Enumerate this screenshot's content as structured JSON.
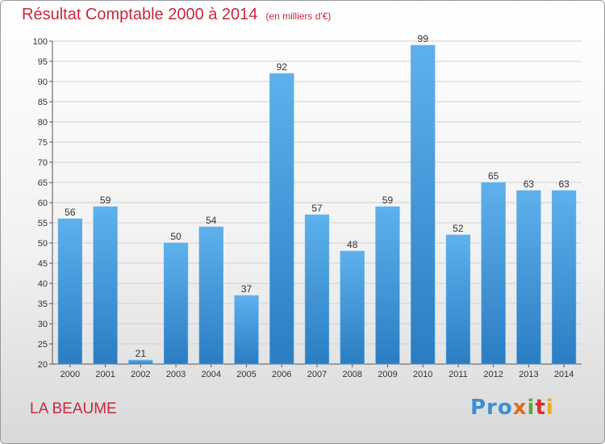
{
  "header": {
    "title": "Résultat Comptable 2000 à 2014",
    "subtitle": "(en milliers d'€)"
  },
  "footer": {
    "place": "LA BEAUME",
    "logo_parts": [
      "Pro",
      "x",
      "i",
      "t",
      "i"
    ]
  },
  "colors": {
    "bar_light": "#5eb1ec",
    "bar_dark": "#2b7dc2",
    "title": "#c8283c",
    "axis_text": "#333333",
    "grid": "#d0d0d0"
  },
  "chart_data": {
    "type": "bar",
    "title": "Résultat Comptable 2000 à 2014",
    "subtitle": "(en milliers d'€)",
    "categories": [
      "2000",
      "2001",
      "2002",
      "2003",
      "2004",
      "2005",
      "2006",
      "2007",
      "2008",
      "2009",
      "2010",
      "2011",
      "2012",
      "2013",
      "2014"
    ],
    "values": [
      56,
      59,
      21,
      50,
      54,
      37,
      92,
      57,
      48,
      59,
      99,
      52,
      65,
      63,
      63
    ],
    "ylim": [
      20,
      100
    ],
    "ytick_step": 5,
    "grid": true,
    "data_labels": true
  }
}
